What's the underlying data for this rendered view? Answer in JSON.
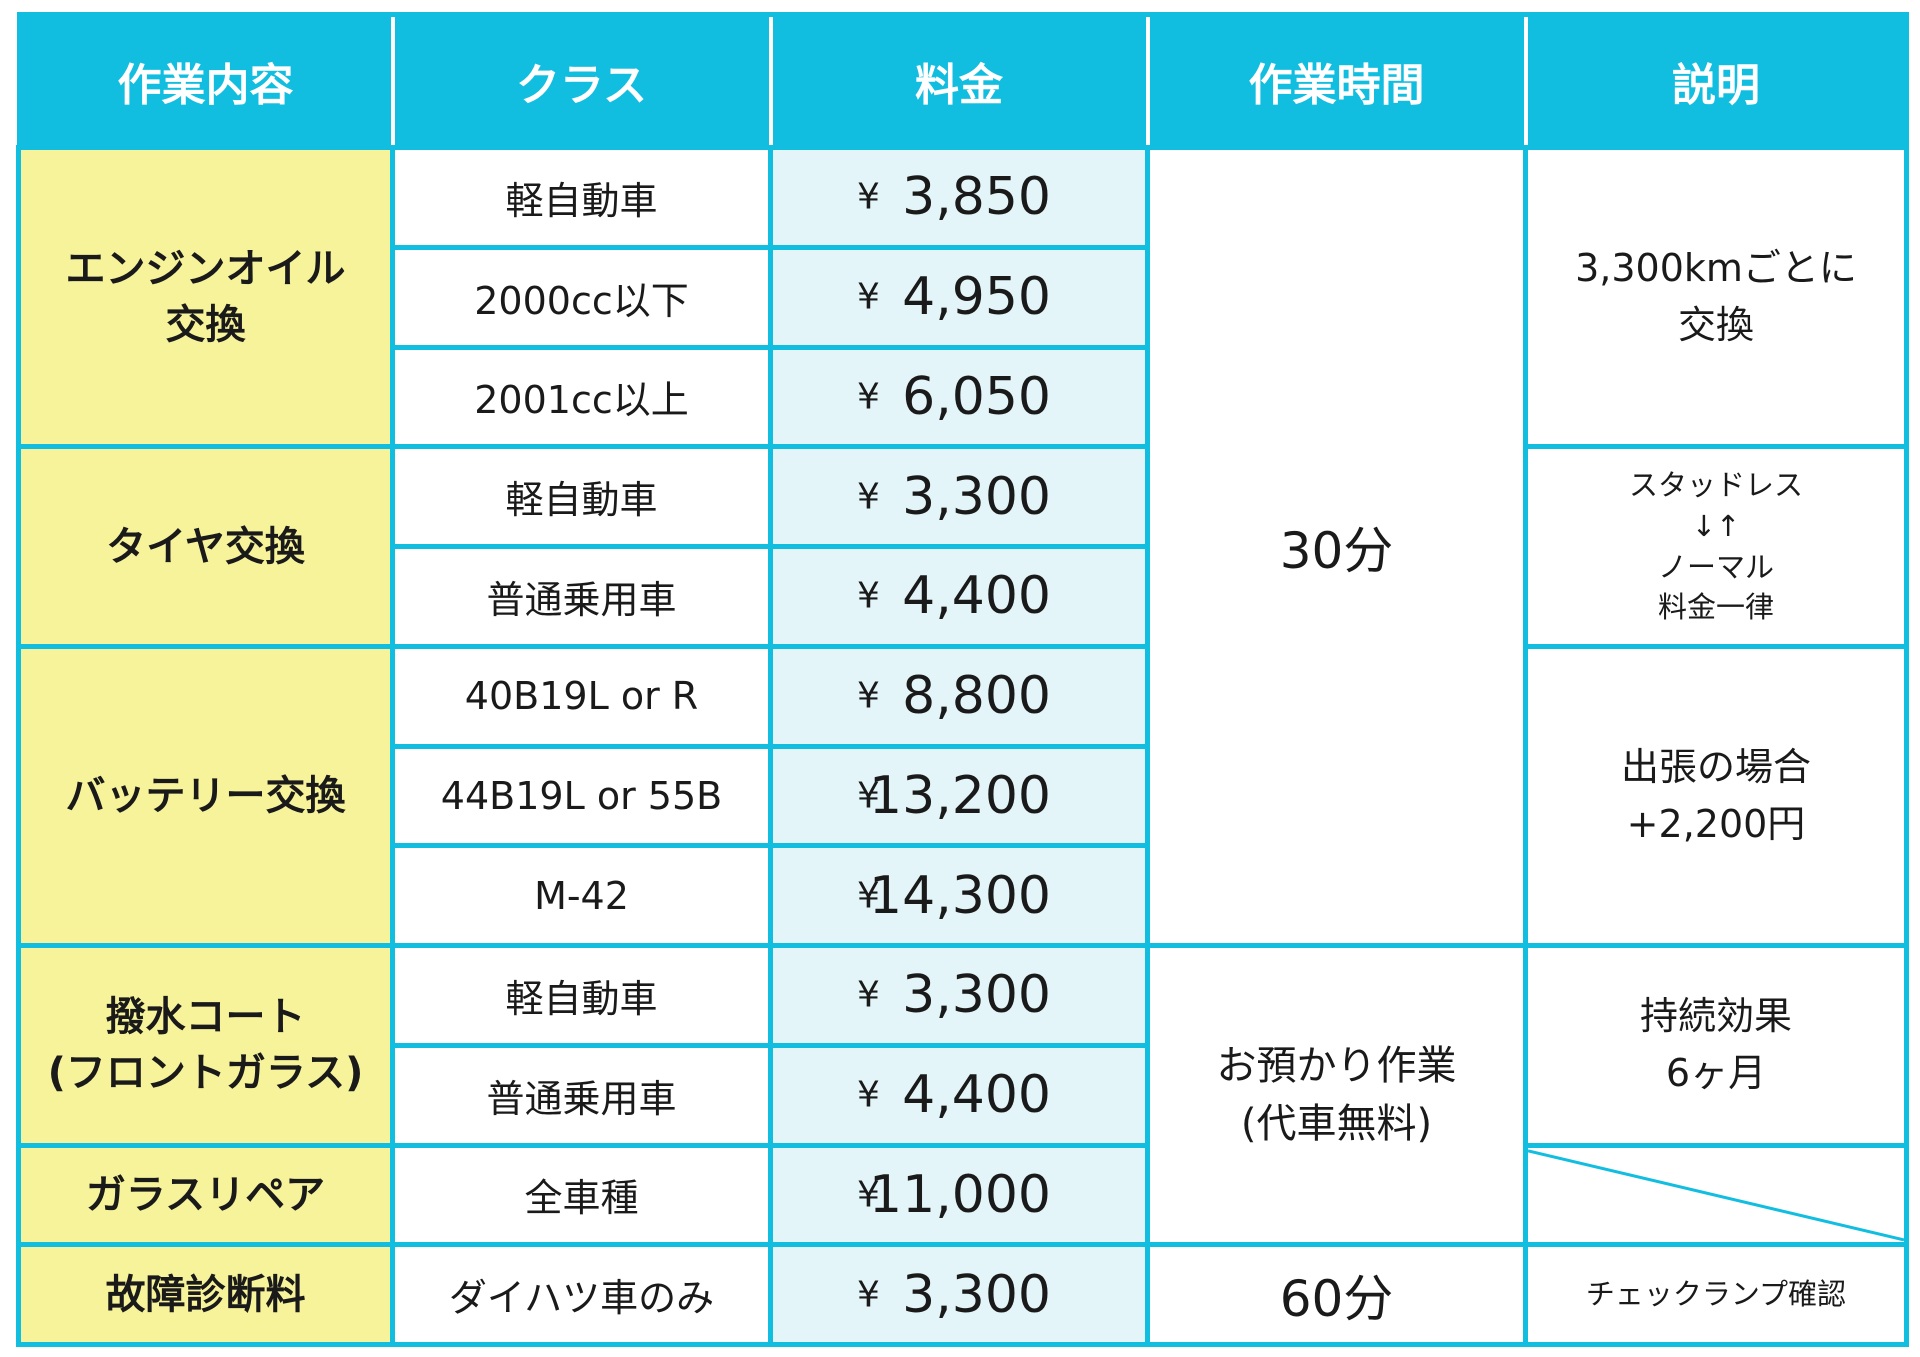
{
  "headers": {
    "work": "作業内容",
    "class": "クラス",
    "price": "料金",
    "time": "作業時間",
    "description": "説明"
  },
  "yen_sign": "¥",
  "groups": {
    "engine_oil": {
      "work": [
        "エンジンオイル",
        "交換"
      ],
      "rows": [
        {
          "class": "軽自動車",
          "price": "3,850"
        },
        {
          "class": "2000cc以下",
          "price": "4,950"
        },
        {
          "class": "2001cc以上",
          "price": "6,050"
        }
      ],
      "description": [
        "3,300kmごとに",
        "交換"
      ]
    },
    "tire": {
      "work": [
        "タイヤ交換"
      ],
      "rows": [
        {
          "class": "軽自動車",
          "price": "3,300"
        },
        {
          "class": "普通乗用車",
          "price": "4,400"
        }
      ],
      "description": [
        "スタッドレス",
        "↓↑",
        "ノーマル",
        "料金一律"
      ]
    },
    "battery": {
      "work": [
        "バッテリー交換"
      ],
      "rows": [
        {
          "class": "40B19L or R",
          "price": "8,800"
        },
        {
          "class": "44B19L or 55B",
          "price": "13,200"
        },
        {
          "class": "M-42",
          "price": "14,300"
        }
      ],
      "description": [
        "出張の場合",
        "+2,200円"
      ]
    },
    "water_coat": {
      "work": [
        "撥水コート",
        "(フロントガラス)"
      ],
      "rows": [
        {
          "class": "軽自動車",
          "price": "3,300"
        },
        {
          "class": "普通乗用車",
          "price": "4,400"
        }
      ],
      "description": [
        "持続効果",
        "6ヶ月"
      ]
    },
    "glass_repair": {
      "work": [
        "ガラスリペア"
      ],
      "rows": [
        {
          "class": "全車種",
          "price": "11,000"
        }
      ]
    },
    "diagnosis": {
      "work": [
        "故障診断料"
      ],
      "rows": [
        {
          "class": "ダイハツ車のみ",
          "price": "3,300"
        }
      ],
      "time": "60分",
      "description": [
        "チェックランプ確認"
      ]
    }
  },
  "time_30min": "30分",
  "time_dropoff": [
    "お預かり作業",
    "(代車無料)"
  ],
  "colors": {
    "accent": "#12bee0",
    "work_bg": "#f7f39b",
    "price_bg": "#e3f5f9"
  }
}
